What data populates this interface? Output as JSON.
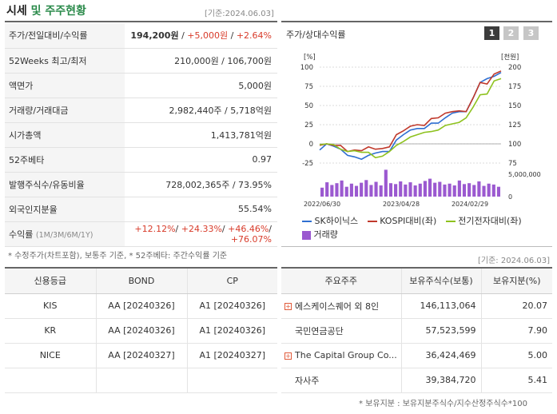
{
  "header": {
    "title_part1": "시세",
    "title_part2": " 및 주주현황",
    "base_date": "[기준:2024.06.03]"
  },
  "info": {
    "rows": [
      {
        "label": "주가/전일대비/수익률",
        "value": "194,200원",
        "change": "+5,000원",
        "rate": "+2.64%"
      },
      {
        "label": "52Weeks 최고/최저",
        "value": "210,000원 / 106,700원"
      },
      {
        "label": "액면가",
        "value": "5,000원"
      },
      {
        "label": "거래량/거래대금",
        "value": "2,982,440주 / 5,718억원"
      },
      {
        "label": "시가총액",
        "value": "1,413,781억원"
      },
      {
        "label": "52주베타",
        "value": "0.97"
      },
      {
        "label": "발행주식수/유동비율",
        "value": "728,002,365주 / 73.95%"
      },
      {
        "label": "외국인지분율",
        "value": "55.54%"
      }
    ],
    "return_row": {
      "label": "수익률",
      "periods": "(1M/3M/6M/1Y)",
      "v1": "+12.12%",
      "v2": "+24.33%",
      "v3": "+46.46%",
      "v4": "+76.07%"
    },
    "note": "* 수정주가(차트포함), 보통주 기준, * 52주베타: 주간수익률 기준"
  },
  "chart": {
    "title": "주가/상대수익률",
    "period_buttons": [
      "1",
      "2",
      "3"
    ],
    "left_unit": "[%]",
    "right_unit": "[천원]",
    "legend": {
      "sk": "SK하이닉스",
      "kospi": "KOSPI대비(좌)",
      "elec": "전기전자대비(좌)",
      "volume": "거래량"
    },
    "colors": {
      "sk": "#2f6fd1",
      "kospi": "#c0392b",
      "elec": "#8ec21f",
      "volume": "#9b59d0"
    }
  },
  "chart_data": {
    "type": "line",
    "x_tick_labels": [
      "2022/06/30",
      "2023/04/28",
      "2024/02/29"
    ],
    "left_axis": {
      "ticks": [
        "100",
        "75",
        "50",
        "25",
        "0",
        "-25"
      ],
      "ylim": [
        -25,
        100
      ]
    },
    "right_axis": {
      "ticks": [
        "200",
        "175",
        "150",
        "125",
        "100",
        "75"
      ],
      "ylim": [
        75,
        200
      ]
    },
    "volume_axis": {
      "ticks": [
        "5,000,000",
        "0"
      ],
      "ylim": [
        0,
        5000000
      ]
    },
    "series": [
      {
        "name": "SK하이닉스",
        "axis": "right",
        "values": [
          92,
          100,
          97,
          93,
          85,
          83,
          80,
          85,
          88,
          90,
          90,
          105,
          112,
          118,
          120,
          120,
          127,
          127,
          134,
          140,
          142,
          142,
          160,
          180,
          185,
          188,
          193
        ]
      },
      {
        "name": "KOSPI대비(좌)",
        "axis": "left",
        "values": [
          -2,
          0,
          -2,
          -2,
          -10,
          -8,
          -9,
          -4,
          -7,
          -6,
          -4,
          12,
          17,
          23,
          25,
          24,
          33,
          34,
          40,
          42,
          43,
          42,
          60,
          80,
          78,
          91,
          95
        ]
      },
      {
        "name": "전기전자대비(좌)",
        "axis": "left",
        "values": [
          -1,
          0,
          -1,
          -7,
          -10,
          -9,
          -11,
          -11,
          -18,
          -16,
          -10,
          -2,
          3,
          9,
          12,
          15,
          16,
          18,
          24,
          26,
          28,
          34,
          48,
          64,
          65,
          82,
          85
        ]
      }
    ],
    "volume": [
      2000000,
      3200000,
      2600000,
      3000000,
      3600000,
      2200000,
      2900000,
      2400000,
      3100000,
      3700000,
      2600000,
      3300000,
      2500000,
      6000000,
      3000000,
      2800000,
      3400000,
      2700000,
      3200000,
      2500000,
      2900000,
      3500000,
      4000000,
      3100000,
      3300000,
      2700000,
      2900000,
      2500000,
      3600000,
      2800000,
      3000000,
      2600000,
      3400000,
      2400000,
      2900000,
      2700000,
      2200000
    ]
  },
  "rating": {
    "headers": [
      "신용등급",
      "BOND",
      "CP"
    ],
    "rows": [
      [
        "KIS",
        "AA  [20240326]",
        "A1  [20240326]"
      ],
      [
        "KR",
        "AA  [20240326]",
        "A1  [20240326]"
      ],
      [
        "NICE",
        "AA  [20240327]",
        "A1  [20240327]"
      ]
    ]
  },
  "holders": {
    "base_date": "[기준: 2024.06.03]",
    "headers": [
      "주요주주",
      "보유주식수(보통)",
      "보유지분(%)"
    ],
    "rows": [
      {
        "name": "에스케이스퀘어 외 8인",
        "shares": "146,113,064",
        "pct": "20.07",
        "expandable": true
      },
      {
        "name": "국민연금공단",
        "shares": "57,523,599",
        "pct": "7.90",
        "expandable": false
      },
      {
        "name": "The Capital Group Co...",
        "shares": "36,424,469",
        "pct": "5.00",
        "expandable": true
      },
      {
        "name": "자사주",
        "shares": "39,384,720",
        "pct": "5.41",
        "expandable": false
      }
    ],
    "note": "* 보유지분 : 보유지분주식수/지수산정주식수*100"
  }
}
